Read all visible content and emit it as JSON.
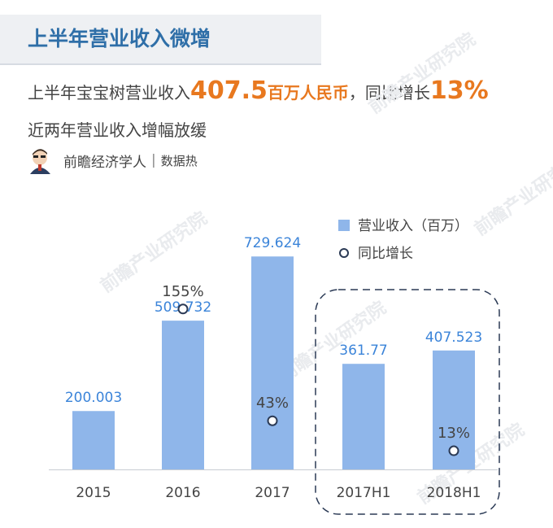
{
  "header": {
    "title": "上半年营业收入微增"
  },
  "headline": {
    "prefix": "上半年宝宝树营业收入",
    "amount": "407.5",
    "unit": "百万人民币",
    "middle": "，同比增长",
    "growth": "13%",
    "subline": "近两年营业收入增幅放缓"
  },
  "author": {
    "name": "前瞻经济学人",
    "sub": "数据热",
    "avatar_icon": "economist-avatar-icon"
  },
  "watermark": "前瞻产业研究院",
  "colors": {
    "bar": "#8fb6ea",
    "value_label": "#3b84d9",
    "line_marker": "#2b3a55",
    "accent": "#e8781f",
    "title": "#2f6fa8"
  },
  "chart_data": {
    "type": "bar",
    "categories": [
      "2015",
      "2016",
      "2017",
      "2017H1",
      "2018H1"
    ],
    "series": [
      {
        "name": "营业收入（百万）",
        "type": "bar",
        "values": [
          200.003,
          509.732,
          729.624,
          361.77,
          407.523
        ],
        "labels": [
          "200.003",
          "509.732",
          "729.624",
          "361.77",
          "407.523"
        ]
      },
      {
        "name": "同比增长",
        "type": "scatter",
        "values": [
          null,
          155,
          43,
          null,
          13
        ],
        "labels": [
          "",
          "155%",
          "43%",
          "",
          "13%"
        ]
      }
    ],
    "ylim": [
      0,
      800
    ],
    "y2lim": [
      0,
      220
    ],
    "grid": false,
    "legend": "top-right",
    "highlight": [
      "2017H1",
      "2018H1"
    ]
  }
}
